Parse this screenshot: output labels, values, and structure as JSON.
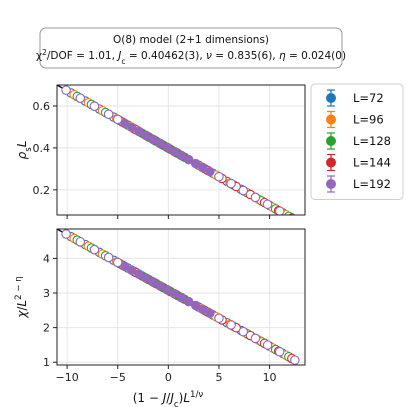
{
  "chart_data": {
    "type": "scatter",
    "title_box": {
      "line1": "O(8) model (2+1 dimensions)",
      "line2_parts": [
        {
          "t": "χ"
        },
        {
          "t": "2",
          "sup": true
        },
        {
          "t": "/DOF = 1.01, "
        },
        {
          "t": "J",
          "it": true
        },
        {
          "t": "c",
          "sub": true
        },
        {
          "t": " = 0.40462(3), "
        },
        {
          "t": "ν",
          "it": true
        },
        {
          "t": " = 0.835(6), "
        },
        {
          "t": "η",
          "it": true
        },
        {
          "t": " = 0.024(0)"
        }
      ]
    },
    "xlabel_parts": [
      {
        "t": "(1 − "
      },
      {
        "t": "J",
        "it": true
      },
      {
        "t": "/"
      },
      {
        "t": "J",
        "it": true
      },
      {
        "t": "c",
        "sub": true
      },
      {
        "t": ")"
      },
      {
        "t": "L",
        "it": true
      },
      {
        "t": "1/ν",
        "sup": true
      }
    ],
    "x_ticks": [
      -10,
      -5,
      0,
      5,
      10
    ],
    "xlim": [
      -11,
      13.5
    ],
    "legend": {
      "position": "right",
      "entries": [
        {
          "name": "L=72",
          "color": "#1f77b4"
        },
        {
          "name": "L=96",
          "color": "#ff7f0e"
        },
        {
          "name": "L=128",
          "color": "#2ca02c"
        },
        {
          "name": "L=144",
          "color": "#d62728"
        },
        {
          "name": "L=192",
          "color": "#9467bd"
        }
      ]
    },
    "panels": [
      {
        "id": "top",
        "ylabel_parts": [
          {
            "t": "ρ",
            "it": true
          },
          {
            "t": "s",
            "sub": true
          },
          {
            "t": "L",
            "it": true
          }
        ],
        "ylim": [
          0.08,
          0.7
        ],
        "y_ticks": [
          0.2,
          0.4,
          0.6
        ],
        "y_tick_labels": [
          "0.2",
          "0.4",
          "0.6"
        ],
        "fit_line": {
          "x": [
            -11,
            12.4
          ],
          "y": [
            0.7,
            0.06
          ]
        },
        "series": [
          {
            "name": "L=72",
            "color": "#1f77b4",
            "filled_x": [
              -2,
              -1.3,
              -0.6,
              0.1,
              0.8
            ],
            "open_x": [
              -9.6,
              -8.2,
              -6.8,
              -5.4,
              -4,
              3,
              4.4,
              5.8,
              7.2,
              8.6,
              10,
              11.3
            ]
          },
          {
            "name": "L=96",
            "color": "#ff7f0e",
            "filled_x": [
              -2.3,
              -1.6,
              -0.9,
              -0.2,
              0.5,
              1.2
            ],
            "open_x": [
              -9.3,
              -7.9,
              -6.5,
              -5.1,
              -3.7,
              3.3,
              4.7,
              6.1,
              7.5,
              8.9,
              10.3,
              11.6
            ]
          },
          {
            "name": "L=128",
            "color": "#2ca02c",
            "filled_x": [
              -2.6,
              -1.9,
              -1.2,
              -0.5,
              0.2,
              0.9,
              1.6
            ],
            "open_x": [
              -9,
              -7.6,
              -6.2,
              -4.8,
              -3.4,
              3.6,
              5,
              6.4,
              7.8,
              9.2,
              10.6,
              11.9
            ]
          },
          {
            "name": "L=144",
            "color": "#d62728",
            "filled_x": [
              -2.9,
              -2.2,
              -1.5,
              -0.8,
              -0.1,
              0.6,
              1.3,
              2
            ],
            "open_x": [
              -8.7,
              -7.3,
              -5.9,
              -4.5,
              -3.2,
              3.9,
              5.3,
              6.7,
              8.1,
              9.5,
              10.9,
              12.2
            ]
          },
          {
            "name": "L=192",
            "color": "#9467bd",
            "filled_x": [
              -4.3,
              -3.6,
              -2.9,
              -2.2,
              -1.5,
              -0.8,
              -0.1,
              0.6,
              1.3,
              2,
              2.7,
              3.4,
              4.1
            ],
            "open_x": [
              -10.1,
              -8.7,
              -7.3,
              -5.9,
              -5,
              5,
              6.2,
              7.4,
              8.6,
              9.8,
              11,
              12.5
            ]
          }
        ]
      },
      {
        "id": "bottom",
        "ylabel_parts": [
          {
            "t": "χ",
            "it": true
          },
          {
            "t": "/"
          },
          {
            "t": "L",
            "it": true
          },
          {
            "t": "2 − η",
            "sup": true
          }
        ],
        "ylim": [
          0.92,
          4.85
        ],
        "y_ticks": [
          1,
          2,
          3,
          4
        ],
        "y_tick_labels": [
          "1",
          "2",
          "3",
          "4"
        ],
        "fit_line": {
          "x": [
            -11,
            13
          ],
          "y": [
            4.85,
            0.98
          ]
        },
        "series": [
          {
            "name": "L=72",
            "color": "#1f77b4",
            "filled_x": [
              -2,
              -1.3,
              -0.6,
              0.1,
              0.8
            ],
            "open_x": [
              -9.6,
              -8.2,
              -6.8,
              -5.4,
              -4,
              3,
              4.4,
              5.8,
              7.2,
              8.6,
              10,
              11.3
            ]
          },
          {
            "name": "L=96",
            "color": "#ff7f0e",
            "filled_x": [
              -2.3,
              -1.6,
              -0.9,
              -0.2,
              0.5,
              1.2
            ],
            "open_x": [
              -9.3,
              -7.9,
              -6.5,
              -5.1,
              -3.7,
              3.3,
              4.7,
              6.1,
              7.5,
              8.9,
              10.3,
              11.6
            ]
          },
          {
            "name": "L=128",
            "color": "#2ca02c",
            "filled_x": [
              -2.6,
              -1.9,
              -1.2,
              -0.5,
              0.2,
              0.9,
              1.6
            ],
            "open_x": [
              -9,
              -7.6,
              -6.2,
              -4.8,
              -3.4,
              3.6,
              5,
              6.4,
              7.8,
              9.2,
              10.6,
              11.9
            ]
          },
          {
            "name": "L=144",
            "color": "#d62728",
            "filled_x": [
              -2.9,
              -2.2,
              -1.5,
              -0.8,
              -0.1,
              0.6,
              1.3,
              2
            ],
            "open_x": [
              -8.7,
              -7.3,
              -5.9,
              -4.5,
              -3.2,
              3.9,
              5.3,
              6.7,
              8.1,
              9.5,
              10.9,
              12.2
            ]
          },
          {
            "name": "L=192",
            "color": "#9467bd",
            "filled_x": [
              -4.3,
              -3.6,
              -2.9,
              -2.2,
              -1.5,
              -0.8,
              -0.1,
              0.6,
              1.3,
              2,
              2.7,
              3.4,
              4.1
            ],
            "open_x": [
              -10.1,
              -8.7,
              -7.3,
              -5.9,
              -5,
              5,
              6.2,
              7.4,
              8.6,
              9.8,
              11,
              12.5
            ]
          }
        ]
      }
    ],
    "grid": true
  }
}
